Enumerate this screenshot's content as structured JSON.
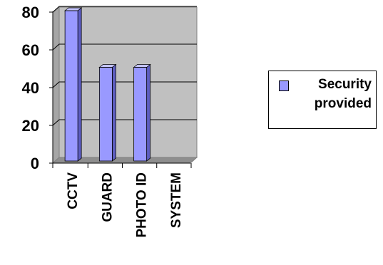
{
  "chart_data": {
    "type": "bar",
    "style": "3d-column",
    "categories": [
      "CCTV",
      "GUARD",
      "PHOTO ID",
      "SYSTEM"
    ],
    "series": [
      {
        "name": "Security provided",
        "values": [
          80,
          50,
          50,
          0
        ],
        "color": "#9999ff"
      }
    ],
    "yticks": [
      "0",
      "20",
      "40",
      "60",
      "80"
    ],
    "ylim": [
      0,
      80
    ],
    "grid": true,
    "legend": "right",
    "colors": {
      "plot_background": "#c0c0c0",
      "plot_side_wall": "#a6a6a6",
      "floor": "#8e8e8e",
      "bar_front": "#9999ff",
      "bar_side": "#5e5ec2",
      "bar_top": "#c3c3ff",
      "grid": "#000000"
    }
  }
}
